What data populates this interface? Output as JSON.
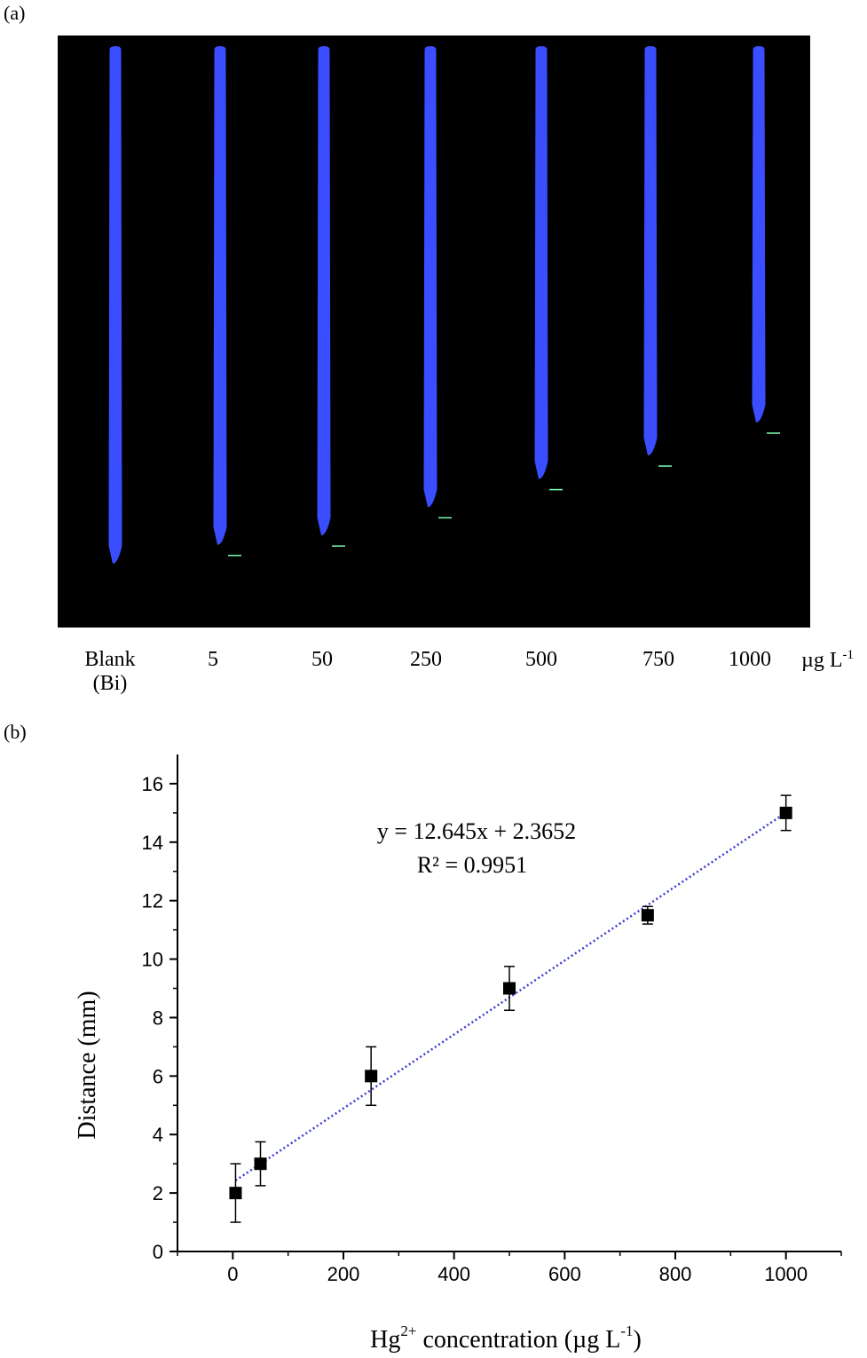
{
  "panel_a": {
    "label": "(a)",
    "strip_color": "#3a4dff",
    "marker_color": "#7dffb0",
    "concentrations": [
      {
        "label": "Blank",
        "sublabel": "(Bi)",
        "distance_mm": 0
      },
      {
        "label": "5",
        "sublabel": "",
        "distance_mm": 2
      },
      {
        "label": "50",
        "sublabel": "",
        "distance_mm": 3
      },
      {
        "label": "250",
        "sublabel": "",
        "distance_mm": 6
      },
      {
        "label": "500",
        "sublabel": "",
        "distance_mm": 9
      },
      {
        "label": "750",
        "sublabel": "",
        "distance_mm": 11.5
      },
      {
        "label": "1000",
        "sublabel": "",
        "distance_mm": 15
      }
    ],
    "unit_main": "µg L",
    "unit_sup": "-1"
  },
  "panel_b": {
    "label": "(b)",
    "equation": "y = 12.645x + 2.3652",
    "r_squared": "R² = 0.9951"
  },
  "chart_data": {
    "type": "scatter",
    "x": [
      5,
      50,
      250,
      500,
      750,
      1000
    ],
    "y": [
      2,
      3,
      6,
      9,
      11.5,
      15
    ],
    "y_err": [
      1.0,
      0.75,
      1.0,
      0.75,
      0.3,
      0.6
    ],
    "fit": {
      "slope_per_1000": 12.645,
      "intercept": 2.3652,
      "color": "#3b3bd6",
      "style": "dotted"
    },
    "xlim": [
      -100,
      1100
    ],
    "ylim": [
      0,
      17
    ],
    "xticks": [
      0,
      200,
      400,
      600,
      800,
      1000
    ],
    "yticks": [
      0,
      2,
      4,
      6,
      8,
      10,
      12,
      14,
      16
    ],
    "xlabel_main": "Hg",
    "xlabel_sup": "2+",
    "xlabel_rest": " concentration (µg L",
    "xlabel_sup2": "-1",
    "xlabel_end": ")",
    "ylabel": "Distance (mm)"
  }
}
